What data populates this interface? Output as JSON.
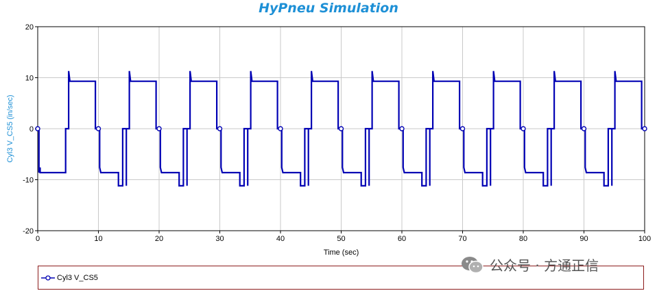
{
  "chart_data": {
    "type": "line",
    "title": "HyPneu Simulation",
    "xlabel": "Time (sec)",
    "ylabel": "Cyl3 V_CS5 (in/sec)",
    "xlim": [
      0,
      100
    ],
    "ylim": [
      -20,
      20
    ],
    "xticks": [
      "0",
      "10",
      "20",
      "30",
      "40",
      "50",
      "60",
      "70",
      "80",
      "90",
      "100"
    ],
    "yticks": [
      "20",
      "10",
      "0",
      "-10",
      "-20"
    ],
    "grid": true,
    "legend_position": "bottom",
    "series": [
      {
        "name": "Cyl3 V_CS5",
        "color": "#0000b4",
        "marker": "open-circle",
        "markers_x": [
          0,
          10,
          20,
          30,
          40,
          50,
          60,
          70,
          80,
          90,
          100
        ],
        "period": 10,
        "cycle": [
          {
            "t": 0.0,
            "v": 0
          },
          {
            "t": 0.2,
            "v": 0
          },
          {
            "t": 0.2,
            "v": -8.6
          },
          {
            "t": 0.4,
            "v": -7.6
          },
          {
            "t": 0.4,
            "v": -8.6
          },
          {
            "t": 4.6,
            "v": -8.6
          },
          {
            "t": 4.6,
            "v": 0
          },
          {
            "t": 5.1,
            "v": 0
          },
          {
            "t": 5.1,
            "v": 11.3
          },
          {
            "t": 5.3,
            "v": 9.3
          },
          {
            "t": 9.5,
            "v": 9.3
          },
          {
            "t": 9.5,
            "v": 0
          },
          {
            "t": 10.0,
            "v": 0
          }
        ],
        "cycle_alt": [
          {
            "t": 0.0,
            "v": 0
          },
          {
            "t": 0.2,
            "v": 0
          },
          {
            "t": 0.2,
            "v": -7.6
          },
          {
            "t": 0.4,
            "v": -8.6
          },
          {
            "t": 3.3,
            "v": -8.6
          },
          {
            "t": 3.3,
            "v": -11.2
          },
          {
            "t": 4.0,
            "v": -11.2
          },
          {
            "t": 4.0,
            "v": -8.6
          },
          {
            "t": 4.0,
            "v": 0
          },
          {
            "t": 4.0,
            "v": 0
          },
          {
            "t": 4.6,
            "v": 0
          },
          {
            "t": 4.6,
            "v": -11.2
          },
          {
            "t": 4.6,
            "v": 0
          },
          {
            "t": 5.1,
            "v": 0
          },
          {
            "t": 5.1,
            "v": 11.3
          },
          {
            "t": 5.3,
            "v": 9.3
          },
          {
            "t": 9.5,
            "v": 9.3
          },
          {
            "t": 9.5,
            "v": 0
          },
          {
            "t": 10.0,
            "v": 0
          }
        ]
      }
    ]
  },
  "legend": {
    "label": "Cyl3 V_CS5"
  },
  "watermark": {
    "text": "公众号 · 方通正信"
  }
}
